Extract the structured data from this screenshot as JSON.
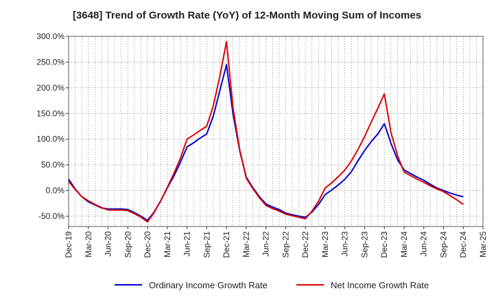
{
  "chart_data": {
    "type": "line",
    "title": "[3648]  Trend of Growth Rate (YoY) of 12-Month Moving Sum of Incomes",
    "xlabel": "",
    "ylabel": "",
    "x_tick_labels": [
      "Dec-19",
      "Mar-20",
      "Jun-20",
      "Sep-20",
      "Dec-20",
      "Mar-21",
      "Jun-21",
      "Sep-21",
      "Dec-21",
      "Mar-22",
      "Jun-22",
      "Sep-22",
      "Dec-22",
      "Mar-23",
      "Jun-23",
      "Sep-23",
      "Dec-23",
      "Mar-24",
      "Jun-24",
      "Sep-24",
      "Dec-24",
      "Mar-25"
    ],
    "y_tick_labels": [
      "300.0%",
      "250.0%",
      "200.0%",
      "150.0%",
      "100.0%",
      "50.0%",
      "0.0%",
      "-50.0%"
    ],
    "y_ticks": [
      300,
      250,
      200,
      150,
      100,
      50,
      0,
      -50
    ],
    "ylim": [
      -70,
      300
    ],
    "grid": true,
    "legend_position": "bottom",
    "x": [
      "Dec-19",
      "Jan-20",
      "Feb-20",
      "Mar-20",
      "Apr-20",
      "May-20",
      "Jun-20",
      "Jul-20",
      "Aug-20",
      "Sep-20",
      "Oct-20",
      "Nov-20",
      "Dec-20",
      "Jan-21",
      "Feb-21",
      "Mar-21",
      "Apr-21",
      "May-21",
      "Jun-21",
      "Jul-21",
      "Aug-21",
      "Sep-21",
      "Oct-21",
      "Nov-21",
      "Dec-21",
      "Jan-22",
      "Feb-22",
      "Mar-22",
      "Apr-22",
      "May-22",
      "Jun-22",
      "Jul-22",
      "Aug-22",
      "Sep-22",
      "Oct-22",
      "Nov-22",
      "Dec-22",
      "Jan-23",
      "Feb-23",
      "Mar-23",
      "Apr-23",
      "May-23",
      "Jun-23",
      "Jul-23",
      "Aug-23",
      "Sep-23",
      "Oct-23",
      "Nov-23",
      "Dec-23",
      "Jan-24",
      "Feb-24",
      "Mar-24",
      "Apr-24",
      "May-24",
      "Jun-24",
      "Jul-24",
      "Aug-24",
      "Sep-24",
      "Oct-24",
      "Nov-24",
      "Dec-24"
    ],
    "series": [
      {
        "name": "Ordinary Income Growth Rate",
        "color": "#0000cc",
        "values": [
          22,
          3,
          -12,
          -22,
          -28,
          -34,
          -36,
          -36,
          -36,
          -37,
          -43,
          -50,
          -58,
          -42,
          -20,
          5,
          28,
          55,
          85,
          93,
          102,
          110,
          145,
          195,
          245,
          148,
          78,
          26,
          6,
          -12,
          -26,
          -32,
          -37,
          -44,
          -47,
          -50,
          -52,
          -42,
          -27,
          -8,
          1,
          11,
          22,
          37,
          58,
          78,
          95,
          110,
          130,
          92,
          60,
          40,
          33,
          26,
          20,
          12,
          5,
          0,
          -5,
          -9,
          -12
        ]
      },
      {
        "name": "Net Income Growth Rate",
        "color": "#dd0000",
        "values": [
          18,
          2,
          -12,
          -20,
          -27,
          -33,
          -38,
          -38,
          -38,
          -39,
          -45,
          -52,
          -61,
          -43,
          -20,
          6,
          33,
          63,
          100,
          108,
          117,
          125,
          165,
          223,
          290,
          160,
          80,
          24,
          4,
          -14,
          -29,
          -35,
          -40,
          -46,
          -49,
          -52,
          -55,
          -40,
          -21,
          5,
          15,
          27,
          40,
          58,
          80,
          105,
          133,
          160,
          188,
          113,
          68,
          36,
          29,
          22,
          16,
          9,
          3,
          -2,
          -10,
          -18,
          -27
        ]
      }
    ]
  }
}
